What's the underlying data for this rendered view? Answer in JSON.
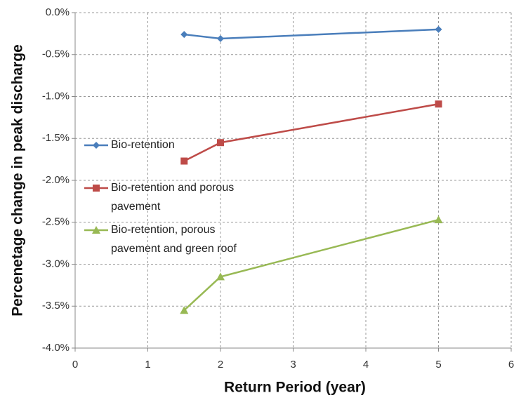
{
  "chart_data": {
    "type": "line",
    "x_label": "Return Period (year)",
    "y_label": "Percenetage change in peak discharge",
    "xlim": [
      0,
      6
    ],
    "xticks": [
      0,
      1,
      2,
      3,
      4,
      5,
      6
    ],
    "ylim": [
      -4,
      0
    ],
    "yticks": [
      {
        "value": -4,
        "label": "-4.0%"
      },
      {
        "value": -3.5,
        "label": "-3.5%"
      },
      {
        "value": -3,
        "label": "-3.0%"
      },
      {
        "value": -2.5,
        "label": "-2.5%"
      },
      {
        "value": -2,
        "label": "-2.0%"
      },
      {
        "value": -1.5,
        "label": "-1.5%"
      },
      {
        "value": -1,
        "label": "-1.0%"
      },
      {
        "value": -0.5,
        "label": "-0.5%"
      },
      {
        "value": 0,
        "label": "0.0%"
      }
    ],
    "grid": true,
    "series": [
      {
        "name": "Bio-retention",
        "color": "#4a7ebb",
        "marker": "diamond",
        "x": [
          1.5,
          2,
          5
        ],
        "values": [
          -0.26,
          -0.31,
          -0.2
        ]
      },
      {
        "name": "Bio-retention and porous pavement",
        "color": "#be4b48",
        "marker": "square",
        "x": [
          1.5,
          2,
          5
        ],
        "values": [
          -1.77,
          -1.55,
          -1.09
        ]
      },
      {
        "name": "Bio-retention, porous pavement and green roof",
        "color": "#98b954",
        "marker": "triangle",
        "x": [
          1.5,
          2,
          5
        ],
        "values": [
          -3.55,
          -3.15,
          -2.47
        ]
      }
    ]
  }
}
